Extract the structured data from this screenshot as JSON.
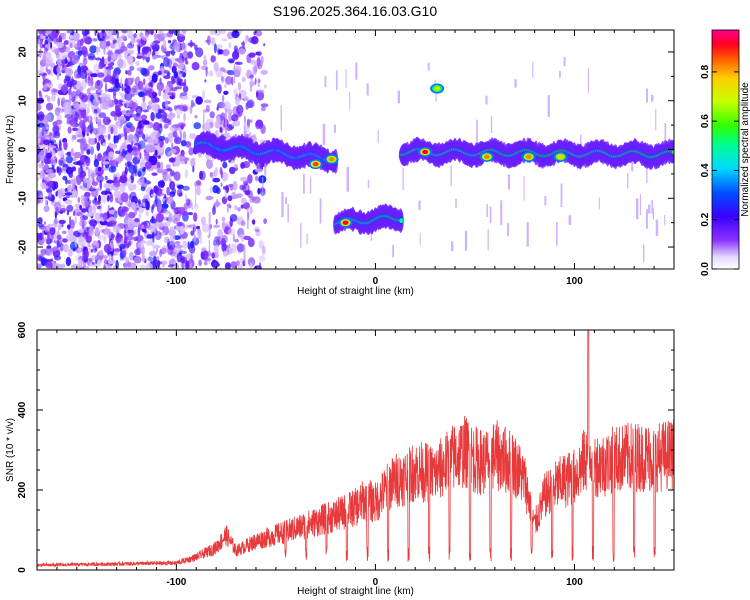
{
  "title": "S196.2025.364.16.03.G10",
  "chart_data": [
    {
      "type": "heatmap",
      "xlabel": "Height of straight line (km)",
      "ylabel": "Frequency (Hz)",
      "xlim": [
        -170,
        150
      ],
      "ylim": [
        -24.5,
        24.5
      ],
      "x_ticks": [
        -100,
        0,
        100
      ],
      "y_ticks": [
        -20,
        -10,
        0,
        10,
        20
      ],
      "colorbar": {
        "label": "Normalized spectral amplitude",
        "range": [
          0,
          0.97
        ],
        "ticks": [
          0.0,
          0.2,
          0.4,
          0.6,
          0.8
        ],
        "tick_labels": [
          "0.0",
          "0.2",
          "0.4",
          "0.6",
          "0.8"
        ]
      },
      "ridge_segments": [
        {
          "x_start": -90,
          "x_end": -20,
          "freq_start": 1,
          "freq_end": -2,
          "amplitude": 0.35
        },
        {
          "x_start": -20,
          "x_end": 13,
          "freq_start": -15,
          "freq_end": -14,
          "amplitude": 0.45
        },
        {
          "x_start": 13,
          "x_end": 150,
          "freq_start": -0.5,
          "freq_end": -1,
          "amplitude": 0.5
        }
      ],
      "peaks": [
        {
          "x": -30,
          "freq": -3,
          "amplitude": 0.9
        },
        {
          "x": -22,
          "freq": -2,
          "amplitude": 0.85
        },
        {
          "x": -15,
          "freq": -15,
          "amplitude": 0.95
        },
        {
          "x": 25,
          "freq": -0.5,
          "amplitude": 0.95
        },
        {
          "x": 31,
          "freq": 12.5,
          "amplitude": 0.7
        },
        {
          "x": 56,
          "freq": -1.5,
          "amplitude": 0.85
        },
        {
          "x": 77,
          "freq": -1.5,
          "amplitude": 0.85
        },
        {
          "x": 93,
          "freq": -1.5,
          "amplitude": 0.8
        }
      ]
    },
    {
      "type": "line",
      "xlabel": "Height of straight line (km)",
      "ylabel": "SNR (10 * v/v)",
      "xlim": [
        -170,
        150
      ],
      "ylim": [
        0,
        600
      ],
      "x_ticks": [
        -100,
        0,
        100
      ],
      "y_ticks": [
        0,
        200,
        400,
        600
      ],
      "series": [
        {
          "color": "#e8393b",
          "envelope_x": [
            -170,
            -100,
            -90,
            -80,
            -75,
            -70,
            -60,
            -50,
            -40,
            -30,
            -20,
            -10,
            -5,
            0,
            5,
            10,
            15,
            20,
            30,
            40,
            45,
            50,
            55,
            60,
            70,
            75,
            80,
            85,
            90,
            95,
            100,
            105,
            108,
            110,
            115,
            120,
            130,
            140,
            150
          ],
          "envelope_y": [
            15,
            22,
            40,
            70,
            110,
            60,
            90,
            110,
            130,
            150,
            170,
            195,
            220,
            210,
            250,
            280,
            290,
            310,
            300,
            355,
            370,
            345,
            335,
            360,
            330,
            280,
            140,
            230,
            260,
            280,
            290,
            340,
            370,
            330,
            330,
            345,
            355,
            350,
            365
          ],
          "spike": {
            "x": 107,
            "y": 600
          }
        }
      ]
    }
  ]
}
